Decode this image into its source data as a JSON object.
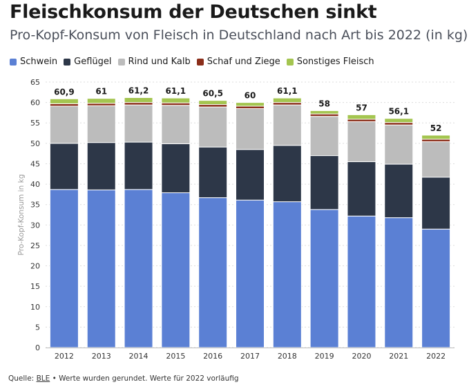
{
  "header": {
    "title": "Fleischkonsum der Deutschen sinkt",
    "subtitle": "Pro-Kopf-Konsum von Fleisch in Deutschland nach Art bis 2022 (in kg)"
  },
  "footer": {
    "prefix": "Quelle: ",
    "source": "BLE",
    "note": " • Werte wurden gerundet. Werte für 2022 vorläufig"
  },
  "chart_data": {
    "type": "bar",
    "stacked": true,
    "title": "Fleischkonsum der Deutschen sinkt",
    "subtitle": "Pro-Kopf-Konsum von Fleisch in Deutschland nach Art bis 2022 (in kg)",
    "xlabel": "",
    "ylabel": "Pro-Kopf-Konsum in kg",
    "ylim": [
      0,
      65
    ],
    "yticks": [
      0,
      5,
      10,
      15,
      20,
      25,
      30,
      35,
      40,
      45,
      50,
      55,
      60,
      65
    ],
    "grid": true,
    "legend_position": "top",
    "categories": [
      "2012",
      "2013",
      "2014",
      "2015",
      "2016",
      "2017",
      "2018",
      "2019",
      "2020",
      "2021",
      "2022"
    ],
    "series": [
      {
        "name": "Schwein",
        "color": "#5b80d4",
        "values": [
          38.7,
          38.6,
          38.7,
          37.9,
          36.7,
          36.1,
          35.7,
          33.8,
          32.2,
          31.8,
          29.0
        ]
      },
      {
        "name": "Geflügel",
        "color": "#2d3748",
        "values": [
          11.3,
          11.6,
          11.6,
          12.0,
          12.4,
          12.4,
          13.8,
          13.2,
          13.3,
          13.1,
          12.7
        ]
      },
      {
        "name": "Rind und Kalb",
        "color": "#bcbcbc",
        "values": [
          9.1,
          9.0,
          9.1,
          9.4,
          9.8,
          10.0,
          9.9,
          9.6,
          9.8,
          9.6,
          8.7
        ]
      },
      {
        "name": "Schaf und Ziege",
        "color": "#8b2e1a",
        "values": [
          0.6,
          0.6,
          0.6,
          0.6,
          0.6,
          0.6,
          0.6,
          0.6,
          0.6,
          0.6,
          0.6
        ]
      },
      {
        "name": "Sonstiges Fleisch",
        "color": "#a4c550",
        "values": [
          1.2,
          1.2,
          1.2,
          1.2,
          1.0,
          0.9,
          1.1,
          0.8,
          1.1,
          1.0,
          1.0
        ]
      }
    ],
    "totals": [
      "60,9",
      "61",
      "61,2",
      "61,1",
      "60,5",
      "60",
      "61,1",
      "58",
      "57",
      "56,1",
      "52"
    ],
    "total_values": [
      60.9,
      61.0,
      61.2,
      61.1,
      60.5,
      60.0,
      61.1,
      58.0,
      57.0,
      56.1,
      52.0
    ]
  }
}
